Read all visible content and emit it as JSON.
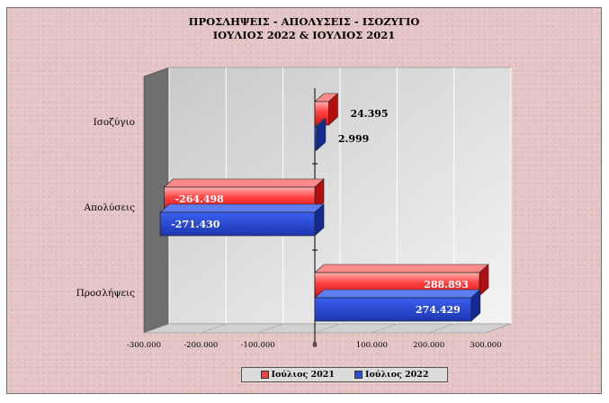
{
  "colors": {
    "july2021": "#ff3b3b",
    "july2022": "#2a4fe0",
    "plot_back": "#d2d2d2",
    "plot_floor": "#c8c8c8",
    "plot_wall": "#6e6e6e"
  },
  "chart_data": {
    "type": "bar",
    "orientation": "horizontal",
    "style": "3d-clustered",
    "title": [
      "ΠΡΟΣΛΗΨΕΙΣ - ΑΠΟΛΥΣΕΙΣ - ΙΣΟΖΥΓΙΟ",
      "ΙΟΥΛΙΟΣ 2022 & ΙΟΥΛΙΟΣ 2021"
    ],
    "categories": [
      "Ισοζύγιο",
      "Απολύσεις",
      "Προσλήψεις"
    ],
    "series": [
      {
        "name": "Ιούλιος 2021",
        "values": [
          24395,
          -264498,
          288893
        ],
        "labels": [
          "24.395",
          "-264.498",
          "288.893"
        ]
      },
      {
        "name": "Ιούλιος 2022",
        "values": [
          2999,
          -271430,
          274429
        ],
        "labels": [
          "2.999",
          "-271.430",
          "274.429"
        ]
      }
    ],
    "xlim": [
      -300000,
      300000
    ],
    "xticks": [
      -300000,
      -200000,
      -100000,
      0,
      100000,
      200000,
      300000
    ],
    "xtick_labels": [
      "-300.000",
      "-200.000",
      "-100.000",
      "0",
      "100.000",
      "200.000",
      "300.000"
    ],
    "grid": true,
    "legend": "bottom"
  }
}
